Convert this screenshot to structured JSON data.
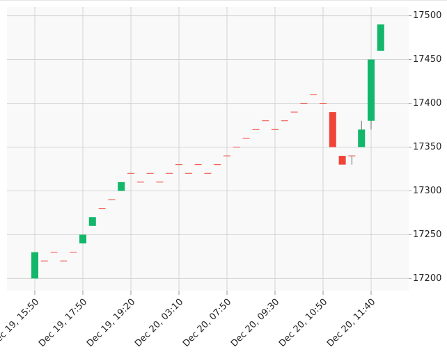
{
  "chart_data": {
    "type": "candlestick",
    "categories": [
      "Dec 19, 15:50",
      null,
      null,
      null,
      null,
      "Dec 19, 17:50",
      null,
      null,
      null,
      null,
      "Dec 19, 19:20",
      null,
      null,
      null,
      null,
      "Dec 20, 03:10",
      null,
      null,
      null,
      null,
      "Dec 20, 07:50",
      null,
      null,
      null,
      null,
      "Dec 20, 09:30",
      null,
      null,
      null,
      null,
      "Dec 20, 10:50",
      null,
      null,
      null,
      null,
      "Dec 20, 11:40",
      null
    ],
    "open": [
      17200,
      17220,
      17230,
      17220,
      17230,
      17240,
      17260,
      17280,
      17290,
      17300,
      17320,
      17310,
      17320,
      17310,
      17320,
      17330,
      17320,
      17330,
      17320,
      17330,
      17340,
      17350,
      17360,
      17370,
      17380,
      17370,
      17380,
      17390,
      17400,
      17410,
      17400,
      17390,
      17340,
      17340,
      17350,
      17380,
      17460
    ],
    "high": [
      17230,
      17220,
      17230,
      17220,
      17230,
      17250,
      17270,
      17280,
      17290,
      17310,
      17320,
      17310,
      17320,
      17310,
      17320,
      17330,
      17320,
      17330,
      17320,
      17330,
      17340,
      17350,
      17360,
      17370,
      17380,
      17370,
      17380,
      17390,
      17400,
      17410,
      17400,
      17390,
      17340,
      17340,
      17380,
      17450,
      17490
    ],
    "low": [
      17200,
      17220,
      17230,
      17220,
      17230,
      17240,
      17260,
      17280,
      17290,
      17300,
      17320,
      17310,
      17320,
      17310,
      17320,
      17330,
      17320,
      17330,
      17320,
      17330,
      17340,
      17350,
      17360,
      17370,
      17380,
      17370,
      17380,
      17390,
      17400,
      17410,
      17400,
      17350,
      17330,
      17330,
      17350,
      17370,
      17460
    ],
    "close": [
      17230,
      17220,
      17230,
      17220,
      17230,
      17250,
      17270,
      17280,
      17290,
      17310,
      17320,
      17310,
      17320,
      17310,
      17320,
      17330,
      17320,
      17330,
      17320,
      17330,
      17340,
      17350,
      17360,
      17370,
      17380,
      17370,
      17380,
      17390,
      17400,
      17410,
      17400,
      17350,
      17330,
      17340,
      17370,
      17450,
      17490
    ],
    "up_color": "#12b76a",
    "down_color": "#f04438",
    "ylim": [
      17186,
      17510
    ],
    "yticks": [
      17200,
      17250,
      17300,
      17350,
      17400,
      17450,
      17500
    ],
    "grid": true
  }
}
